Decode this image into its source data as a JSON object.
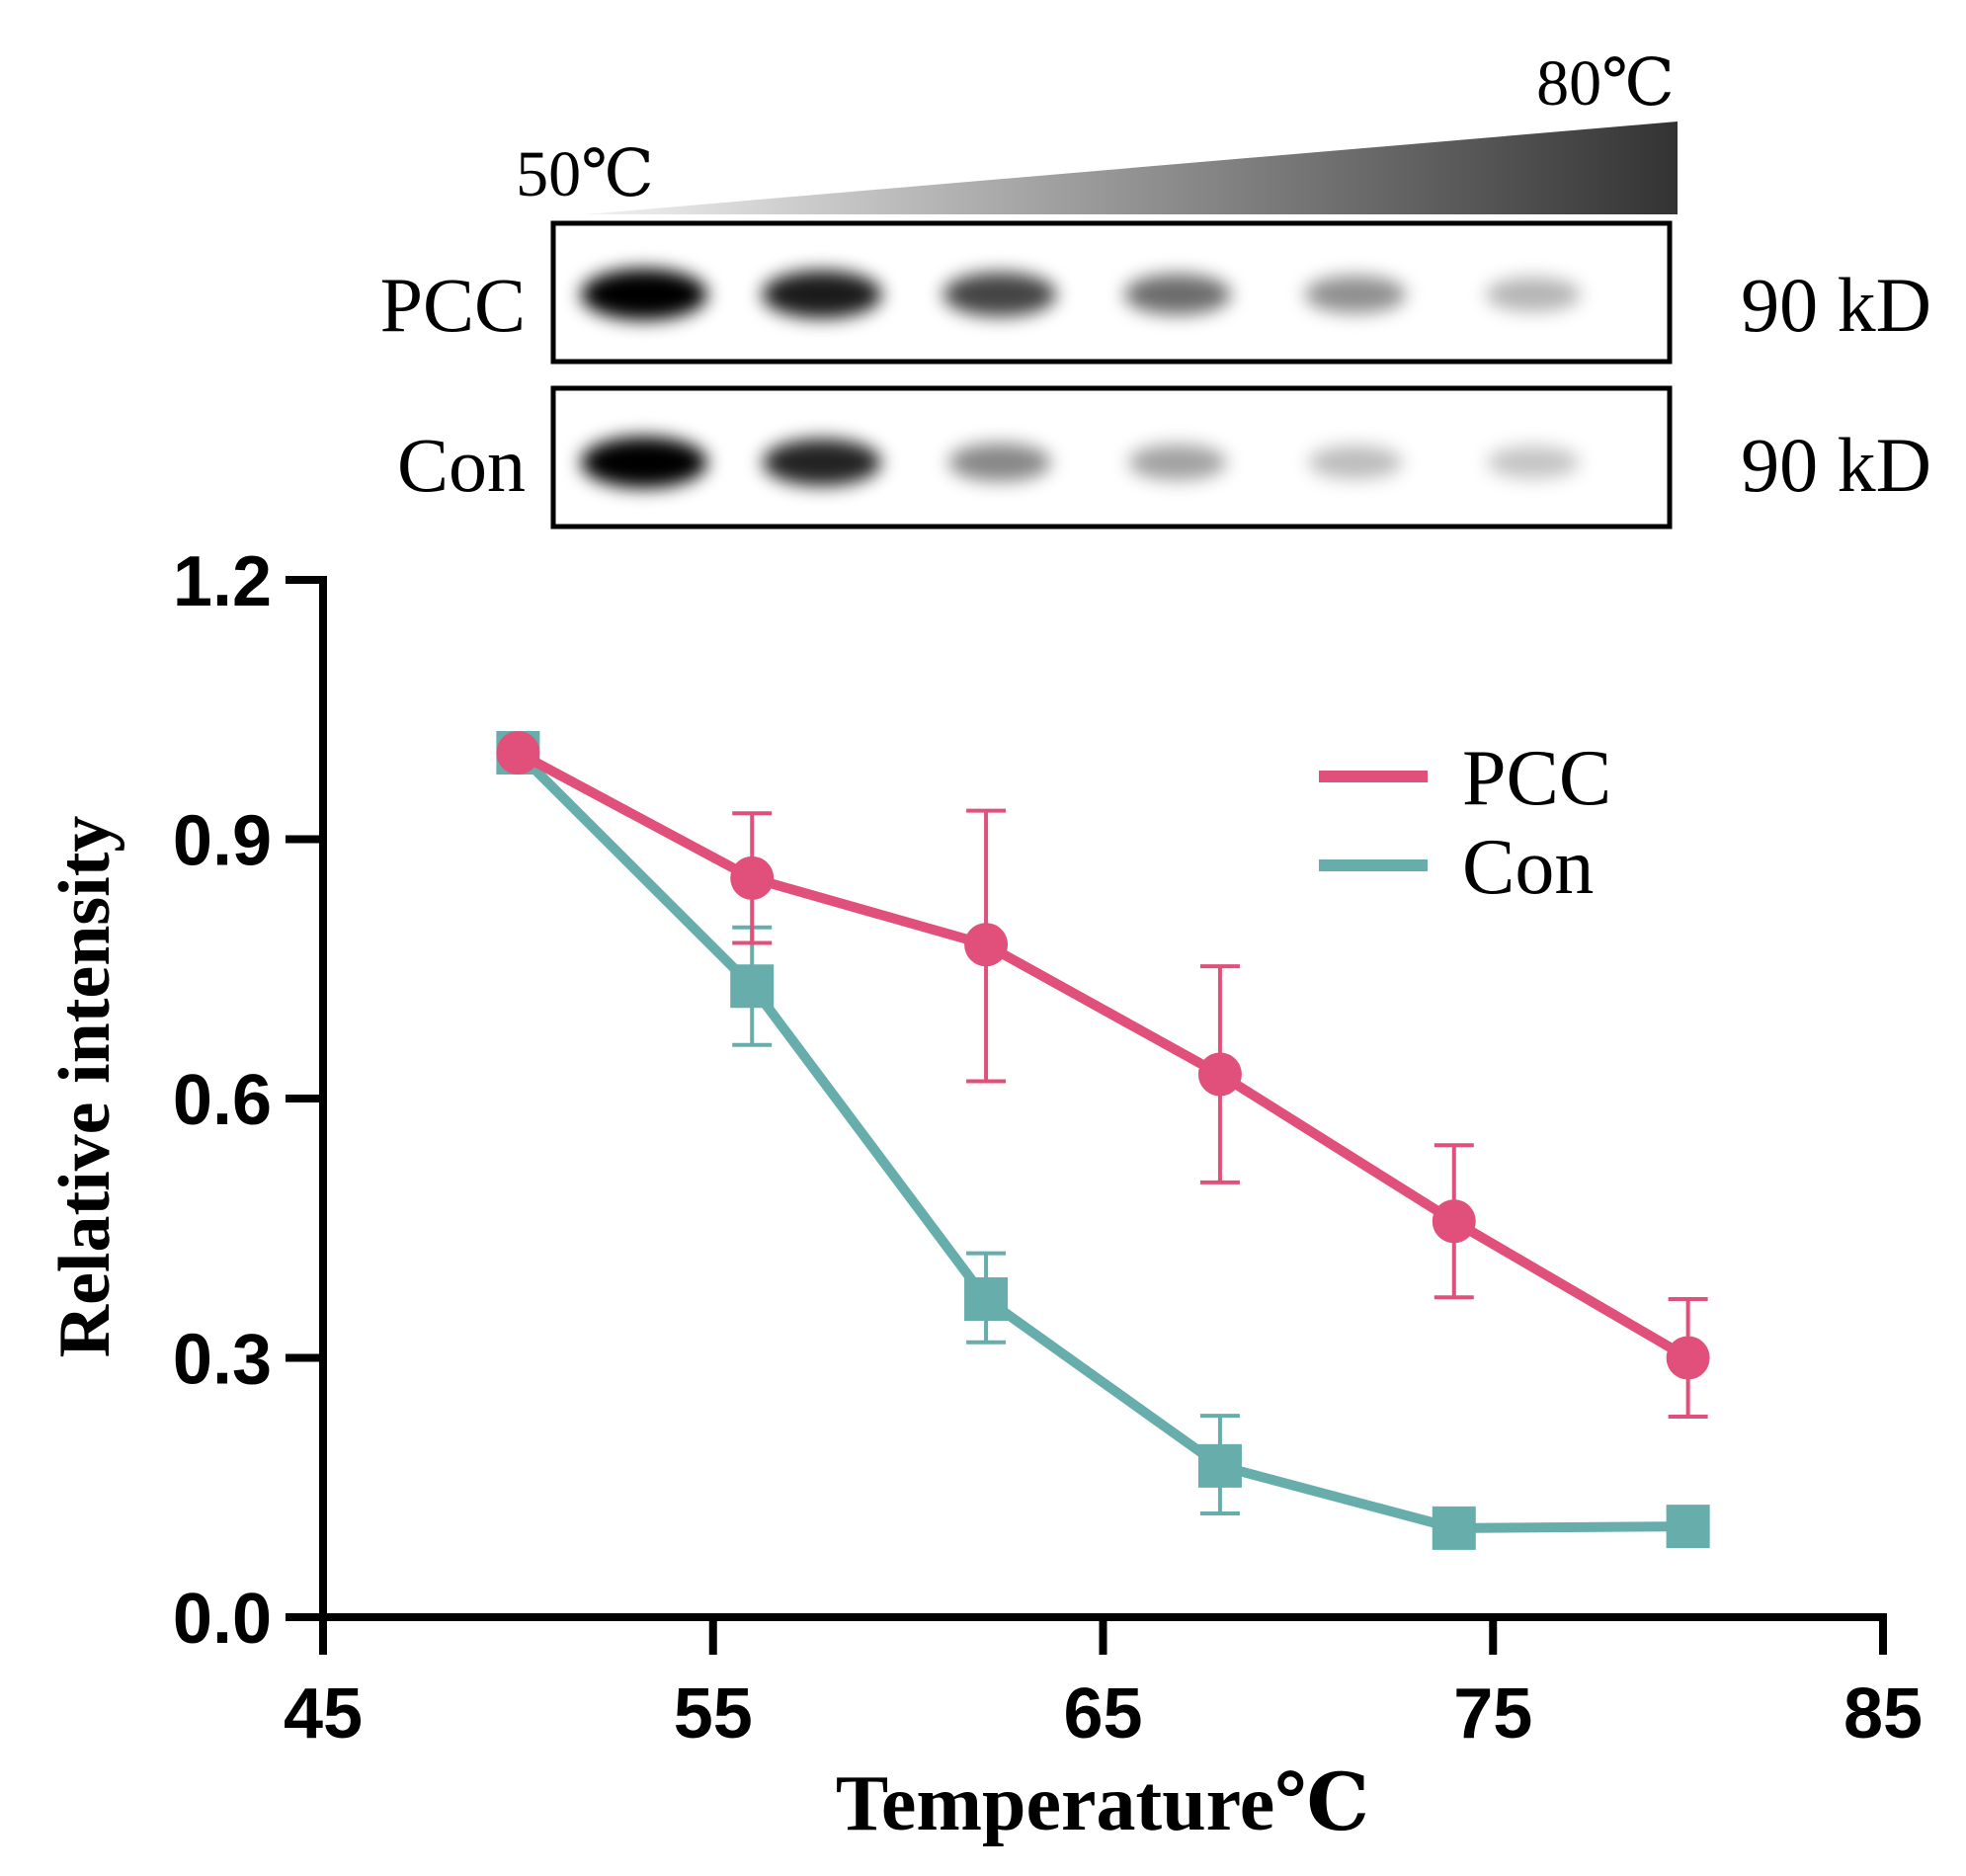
{
  "blot": {
    "gradient_start_label": "50℃",
    "gradient_end_label": "80℃",
    "rows": [
      {
        "label": "PCC",
        "size_label": "90 kD",
        "band_intensities": [
          1.0,
          0.85,
          0.7,
          0.55,
          0.42,
          0.28
        ]
      },
      {
        "label": "Con",
        "size_label": "90 kD",
        "band_intensities": [
          1.0,
          0.82,
          0.45,
          0.35,
          0.25,
          0.22
        ]
      }
    ],
    "colors": {
      "gradient_light": "#f2f2f2",
      "gradient_dark": "#333333",
      "band": "#000000"
    }
  },
  "chart_data": {
    "type": "line",
    "title": "",
    "xlabel": "Temperature℃",
    "ylabel": "Relative intensity",
    "xlim": [
      45,
      85
    ],
    "ylim": [
      0,
      1.2
    ],
    "xticks": [
      45,
      55,
      65,
      75,
      85
    ],
    "yticks": [
      0.0,
      0.3,
      0.6,
      0.9,
      1.2
    ],
    "xtick_labels": [
      "45",
      "55",
      "65",
      "75",
      "85"
    ],
    "ytick_labels": [
      "0.0",
      "0.3",
      "0.6",
      "0.9",
      "1.2"
    ],
    "legend_position": "top-right",
    "grid": false,
    "series": [
      {
        "name": "PCC",
        "color": "#e0507a",
        "marker": "circle",
        "x": [
          50,
          56,
          62,
          68,
          74,
          80
        ],
        "y": [
          1.0,
          0.855,
          0.778,
          0.628,
          0.458,
          0.3
        ],
        "err_low": [
          0,
          0.075,
          0.158,
          0.125,
          0.088,
          0.068
        ],
        "err_high": [
          0,
          0.075,
          0.155,
          0.125,
          0.088,
          0.068
        ]
      },
      {
        "name": "Con",
        "color": "#66adab",
        "marker": "square",
        "x": [
          50,
          56,
          62,
          68,
          74,
          80
        ],
        "y": [
          1.0,
          0.73,
          0.368,
          0.175,
          0.103,
          0.105
        ],
        "err_low": [
          0,
          0.068,
          0.05,
          0.055,
          0,
          0
        ],
        "err_high": [
          0,
          0.068,
          0.053,
          0.058,
          0,
          0
        ]
      }
    ]
  }
}
